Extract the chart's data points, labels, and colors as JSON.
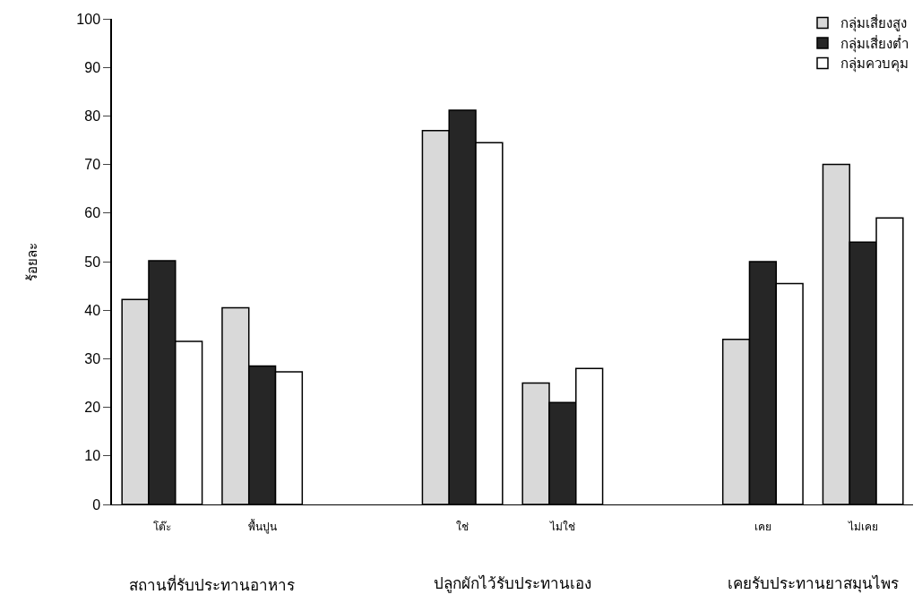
{
  "chart_data": {
    "type": "bar",
    "categories": [
      "โต๊ะ",
      "พื้นปูน",
      null,
      "ใช่",
      "ไม่ใช่",
      null,
      "เคย",
      "ไม่เคย"
    ],
    "series": [
      {
        "name": "กลุ่มเสี่ยงสูง",
        "color": "#d9d9d9",
        "values": [
          42.2,
          40.5,
          null,
          77,
          25,
          null,
          34,
          70
        ]
      },
      {
        "name": "กลุ่มเสี่ยงต่ำ",
        "color": "#262626",
        "values": [
          50.2,
          28.5,
          null,
          81.2,
          21,
          null,
          50,
          54
        ]
      },
      {
        "name": "กลุ่มควบคุม",
        "color": "#ffffff",
        "values": [
          33.6,
          27.3,
          null,
          74.5,
          28,
          null,
          45.5,
          59
        ]
      }
    ],
    "ylabel": "ร้อยละ",
    "ylim": [
      0,
      100
    ],
    "yticks": [
      0,
      10,
      20,
      30,
      40,
      50,
      60,
      70,
      80,
      90,
      100
    ],
    "annotations": [
      "สถานที่รับประทานอาหาร",
      "ปลูกผักไว้รับประทานเอง",
      "เคยรับประทานยาสมุนไพร"
    ],
    "grid": false,
    "legend": "top right"
  }
}
